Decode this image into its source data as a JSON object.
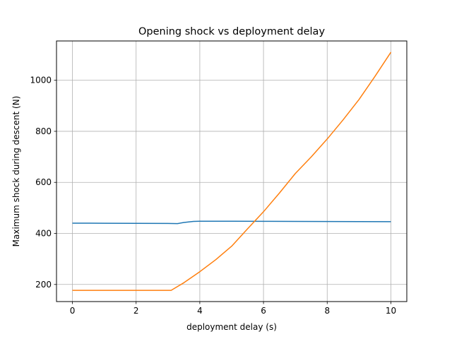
{
  "chart_data": {
    "type": "line",
    "title": "Opening shock vs deployment delay",
    "xlabel": "deployment delay (s)",
    "ylabel": "Maximum shock during descent (N)",
    "xlim": [
      -0.5,
      10.5
    ],
    "ylim": [
      133,
      1154
    ],
    "xticks": [
      0,
      2,
      4,
      6,
      8,
      10
    ],
    "yticks": [
      200,
      400,
      600,
      800,
      1000
    ],
    "grid": true,
    "legend": "none",
    "series": [
      {
        "color": "#1f77b4",
        "x": [
          0,
          1,
          2,
          3,
          3.3,
          3.5,
          3.8,
          4,
          5,
          6,
          7,
          8,
          9,
          10
        ],
        "y": [
          440,
          439.8,
          439.5,
          439,
          438.5,
          443,
          447,
          447.5,
          447.5,
          447.3,
          447,
          446.8,
          446.5,
          446
        ]
      },
      {
        "color": "#ff7f0e",
        "x": [
          0,
          1,
          2,
          3,
          3.1,
          3.5,
          4,
          4.5,
          5,
          5.5,
          6,
          6.5,
          7,
          7.5,
          8,
          8.5,
          9,
          9.5,
          10
        ],
        "y": [
          177,
          177,
          177,
          177,
          177,
          207,
          250,
          297,
          350,
          418,
          485,
          558,
          635,
          700,
          770,
          845,
          925,
          1015,
          1110
        ]
      }
    ]
  }
}
